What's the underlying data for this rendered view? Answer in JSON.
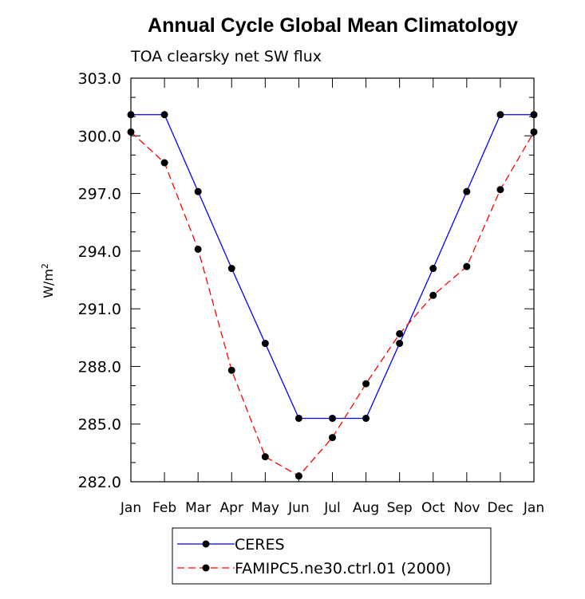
{
  "chart_data": {
    "type": "line",
    "title": "Annual Cycle Global Mean Climatology",
    "subtitle": "TOA clearsky net SW flux",
    "ylabel": "W/m",
    "ylabel_sup": "2",
    "xlabel": "",
    "categories": [
      "Jan",
      "Feb",
      "Mar",
      "Apr",
      "May",
      "Jun",
      "Jul",
      "Aug",
      "Sep",
      "Oct",
      "Nov",
      "Dec",
      "Jan"
    ],
    "ylim": [
      282.0,
      303.0
    ],
    "yticks": [
      282.0,
      285.0,
      288.0,
      291.0,
      294.0,
      297.0,
      300.0,
      303.0
    ],
    "ytick_labels": [
      "282.0",
      "285.0",
      "288.0",
      "291.0",
      "294.0",
      "297.0",
      "300.0",
      "303.0"
    ],
    "grid": false,
    "legend_position": "bottom",
    "series": [
      {
        "name": "CERES",
        "color": "#0000ff",
        "dash": "solid",
        "values": [
          301.1,
          301.1,
          297.1,
          293.1,
          289.2,
          285.3,
          285.3,
          285.3,
          289.2,
          293.1,
          297.1,
          301.1,
          301.1
        ]
      },
      {
        "name": "FAMIPC5.ne30.ctrl.01 (2000)",
        "color": "#ff0000",
        "dash": "dashed",
        "values": [
          300.2,
          298.6,
          294.1,
          287.8,
          283.3,
          282.3,
          284.3,
          287.1,
          289.7,
          291.7,
          293.2,
          297.2,
          300.2
        ]
      }
    ]
  }
}
